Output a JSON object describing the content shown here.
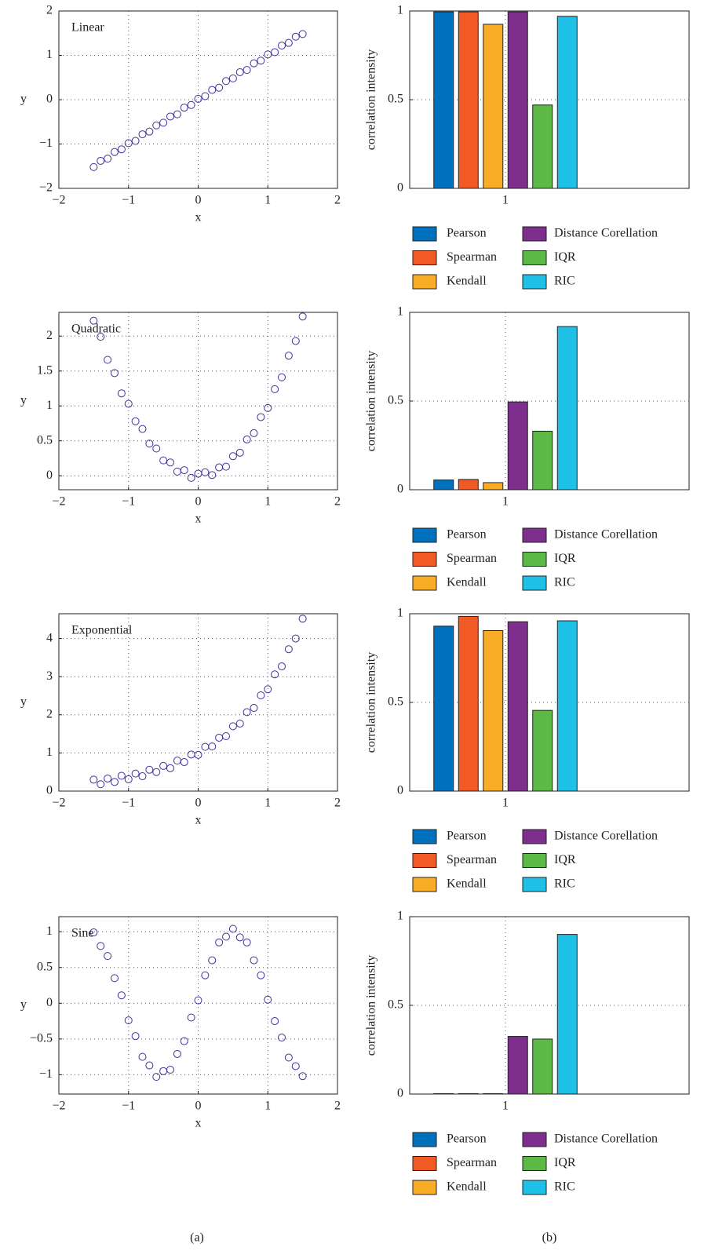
{
  "chart_data": [
    {
      "type": "scatter",
      "annotation": "Linear",
      "xlabel": "x",
      "ylabel": "y",
      "color": "#3b32a0",
      "x": [
        -1.5,
        -1.4,
        -1.3,
        -1.2,
        -1.1,
        -1.0,
        -0.9,
        -0.8,
        -0.7,
        -0.6,
        -0.5,
        -0.4,
        -0.3,
        -0.2,
        -0.1,
        0,
        0.1,
        0.2,
        0.3,
        0.4,
        0.5,
        0.6,
        0.7,
        0.8,
        0.9,
        1.0,
        1.1,
        1.2,
        1.3,
        1.4,
        1.5
      ],
      "y": [
        -1.52,
        -1.38,
        -1.33,
        -1.18,
        -1.12,
        -0.98,
        -0.93,
        -0.78,
        -0.72,
        -0.58,
        -0.52,
        -0.38,
        -0.33,
        -0.18,
        -0.12,
        0.02,
        0.08,
        0.22,
        0.27,
        0.42,
        0.48,
        0.62,
        0.67,
        0.82,
        0.88,
        1.02,
        1.07,
        1.22,
        1.28,
        1.42,
        1.48
      ],
      "xlim": [
        -2,
        2
      ],
      "xticks": [
        {
          "value": -2,
          "label": "−2"
        },
        {
          "value": -1,
          "label": "−1"
        },
        0,
        1,
        2
      ],
      "ylim": [
        -2,
        2
      ],
      "yticks": [
        {
          "value": -2,
          "label": "−2"
        },
        {
          "value": -1,
          "label": "−1"
        },
        0,
        1,
        2
      ],
      "grid": true
    },
    {
      "type": "bar",
      "ylabel": "correlation intensity",
      "categories": [
        "1"
      ],
      "series": [
        {
          "name": "Pearson",
          "color": "#0072bd",
          "values": [
            0.995
          ]
        },
        {
          "name": "Spearman",
          "color": "#f15a24",
          "values": [
            0.995
          ]
        },
        {
          "name": "Kendall",
          "color": "#f9ad26",
          "values": [
            0.925
          ]
        },
        {
          "name": "Distance Corellation",
          "color": "#7e2f8e",
          "values": [
            0.995
          ]
        },
        {
          "name": "IQR",
          "color": "#5cb946",
          "values": [
            0.47
          ]
        },
        {
          "name": "RIC",
          "color": "#1ec0e8",
          "values": [
            0.97
          ]
        }
      ],
      "ylim": [
        0,
        1
      ],
      "yticks": [
        0,
        0.5,
        1
      ],
      "grid": true
    },
    {
      "type": "scatter",
      "annotation": "Quadratic",
      "xlabel": "x",
      "ylabel": "y",
      "color": "#3b32a0",
      "x": [
        -1.5,
        -1.4,
        -1.3,
        -1.2,
        -1.1,
        -1.0,
        -0.9,
        -0.8,
        -0.7,
        -0.6,
        -0.5,
        -0.4,
        -0.3,
        -0.2,
        -0.1,
        0,
        0.1,
        0.2,
        0.3,
        0.4,
        0.5,
        0.6,
        0.7,
        0.8,
        0.9,
        1.0,
        1.1,
        1.2,
        1.3,
        1.4,
        1.5
      ],
      "y": [
        2.22,
        1.99,
        1.66,
        1.47,
        1.18,
        1.03,
        0.78,
        0.67,
        0.46,
        0.39,
        0.22,
        0.19,
        0.06,
        0.08,
        -0.03,
        0.03,
        0.05,
        0.01,
        0.12,
        0.13,
        0.28,
        0.33,
        0.52,
        0.61,
        0.84,
        0.97,
        1.24,
        1.41,
        1.72,
        1.93,
        2.28
      ],
      "xlim": [
        -2,
        2
      ],
      "xticks": [
        {
          "value": -2,
          "label": "−2"
        },
        {
          "value": -1,
          "label": "−1"
        },
        0,
        1,
        2
      ],
      "ylim": [
        -0.2,
        2.34
      ],
      "yticks": [
        0,
        0.5,
        1,
        1.5,
        2
      ],
      "grid": true
    },
    {
      "type": "bar",
      "ylabel": "correlation intensity",
      "categories": [
        "1"
      ],
      "series": [
        {
          "name": "Pearson",
          "color": "#0072bd",
          "values": [
            0.055
          ]
        },
        {
          "name": "Spearman",
          "color": "#f15a24",
          "values": [
            0.058
          ]
        },
        {
          "name": "Kendall",
          "color": "#f9ad26",
          "values": [
            0.04
          ]
        },
        {
          "name": "Distance Corellation",
          "color": "#7e2f8e",
          "values": [
            0.495
          ]
        },
        {
          "name": "IQR",
          "color": "#5cb946",
          "values": [
            0.33
          ]
        },
        {
          "name": "RIC",
          "color": "#1ec0e8",
          "values": [
            0.92
          ]
        }
      ],
      "ylim": [
        0,
        1
      ],
      "yticks": [
        0,
        0.5,
        1
      ],
      "grid": true
    },
    {
      "type": "scatter",
      "annotation": "Exponential",
      "xlabel": "x",
      "ylabel": "y",
      "color": "#3b32a0",
      "x": [
        -1.5,
        -1.4,
        -1.3,
        -1.2,
        -1.1,
        -1.0,
        -0.9,
        -0.8,
        -0.7,
        -0.6,
        -0.5,
        -0.4,
        -0.3,
        -0.2,
        -0.1,
        0,
        0.1,
        0.2,
        0.3,
        0.4,
        0.5,
        0.6,
        0.7,
        0.8,
        0.9,
        1.0,
        1.1,
        1.2,
        1.3,
        1.4,
        1.5
      ],
      "y": [
        0.3,
        0.18,
        0.33,
        0.24,
        0.4,
        0.31,
        0.46,
        0.39,
        0.56,
        0.5,
        0.66,
        0.6,
        0.8,
        0.76,
        0.96,
        0.95,
        1.16,
        1.17,
        1.4,
        1.44,
        1.7,
        1.77,
        2.07,
        2.18,
        2.51,
        2.67,
        3.06,
        3.27,
        3.72,
        4.0,
        4.52
      ],
      "xlim": [
        -2,
        2
      ],
      "xticks": [
        {
          "value": -2,
          "label": "−2"
        },
        {
          "value": -1,
          "label": "−1"
        },
        0,
        1,
        2
      ],
      "ylim": [
        0,
        4.65
      ],
      "yticks": [
        0,
        1,
        2,
        3,
        4
      ],
      "grid": true
    },
    {
      "type": "bar",
      "ylabel": "correlation intensity",
      "categories": [
        "1"
      ],
      "series": [
        {
          "name": "Pearson",
          "color": "#0072bd",
          "values": [
            0.93
          ]
        },
        {
          "name": "Spearman",
          "color": "#f15a24",
          "values": [
            0.985
          ]
        },
        {
          "name": "Kendall",
          "color": "#f9ad26",
          "values": [
            0.905
          ]
        },
        {
          "name": "Distance Corellation",
          "color": "#7e2f8e",
          "values": [
            0.955
          ]
        },
        {
          "name": "IQR",
          "color": "#5cb946",
          "values": [
            0.455
          ]
        },
        {
          "name": "RIC",
          "color": "#1ec0e8",
          "values": [
            0.96
          ]
        }
      ],
      "ylim": [
        0,
        1
      ],
      "yticks": [
        0,
        0.5,
        1
      ],
      "grid": true
    },
    {
      "type": "scatter",
      "annotation": "Sine",
      "xlabel": "x",
      "ylabel": "y",
      "color": "#3b32a0",
      "x": [
        -1.5,
        -1.4,
        -1.3,
        -1.2,
        -1.1,
        -1.0,
        -0.9,
        -0.8,
        -0.7,
        -0.6,
        -0.5,
        -0.4,
        -0.3,
        -0.2,
        -0.1,
        0,
        0.1,
        0.2,
        0.3,
        0.4,
        0.5,
        0.6,
        0.7,
        0.8,
        0.9,
        1.0,
        1.1,
        1.2,
        1.3,
        1.4,
        1.5
      ],
      "y": [
        0.99,
        0.8,
        0.66,
        0.35,
        0.11,
        -0.24,
        -0.46,
        -0.75,
        -0.87,
        -1.03,
        -0.95,
        -0.93,
        -0.71,
        -0.53,
        -0.2,
        0.04,
        0.39,
        0.6,
        0.85,
        0.93,
        1.04,
        0.92,
        0.85,
        0.6,
        0.39,
        0.05,
        -0.25,
        -0.48,
        -0.76,
        -0.88,
        -1.02
      ],
      "xlim": [
        -2,
        2
      ],
      "xticks": [
        {
          "value": -2,
          "label": "−2"
        },
        {
          "value": -1,
          "label": "−1"
        },
        0,
        1,
        2
      ],
      "ylim": [
        -1.27,
        1.21
      ],
      "yticks": [
        {
          "value": -1,
          "label": "−1"
        },
        {
          "value": -0.5,
          "label": "−0.5"
        },
        0,
        0.5,
        1
      ],
      "grid": true
    },
    {
      "type": "bar",
      "ylabel": "correlation intensity",
      "categories": [
        "1"
      ],
      "series": [
        {
          "name": "Pearson",
          "color": "#0072bd",
          "values": [
            0.002
          ]
        },
        {
          "name": "Spearman",
          "color": "#f15a24",
          "values": [
            0.002
          ]
        },
        {
          "name": "Kendall",
          "color": "#f9ad26",
          "values": [
            0.002
          ]
        },
        {
          "name": "Distance Corellation",
          "color": "#7e2f8e",
          "values": [
            0.325
          ]
        },
        {
          "name": "IQR",
          "color": "#5cb946",
          "values": [
            0.31
          ]
        },
        {
          "name": "RIC",
          "color": "#1ec0e8",
          "values": [
            0.9
          ]
        }
      ],
      "ylim": [
        0,
        1
      ],
      "yticks": [
        0,
        0.5,
        1
      ],
      "grid": true
    }
  ],
  "panel_labels": [
    "(a)",
    "(b)"
  ]
}
